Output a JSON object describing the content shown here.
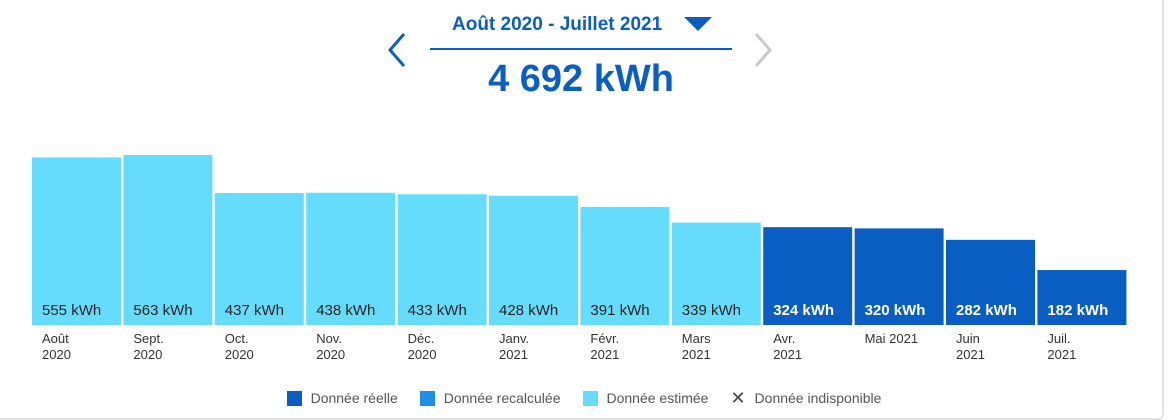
{
  "header": {
    "period_label": "Août 2020 - Juillet 2021",
    "total_label": "4 692 kWh",
    "prev_icon": "chevron-left-icon",
    "next_icon": "chevron-right-icon",
    "dropdown_icon": "caret-down-icon"
  },
  "chart_data": {
    "type": "bar",
    "unit": "kWh",
    "categories": [
      [
        "Août",
        "2020"
      ],
      [
        "Sept.",
        "2020"
      ],
      [
        "Oct.",
        "2020"
      ],
      [
        "Nov.",
        "2020"
      ],
      [
        "Déc.",
        "2020"
      ],
      [
        "Janv.",
        "2021"
      ],
      [
        "Févr.",
        "2021"
      ],
      [
        "Mars",
        "2021"
      ],
      [
        "Avr.",
        "2021"
      ],
      [
        "Mai 2021"
      ],
      [
        "Juin",
        "2021"
      ],
      [
        "Juil.",
        "2021"
      ]
    ],
    "values": [
      555,
      563,
      437,
      438,
      433,
      428,
      391,
      339,
      324,
      320,
      282,
      182
    ],
    "value_labels": [
      "555 kWh",
      "563 kWh",
      "437 kWh",
      "438 kWh",
      "433 kWh",
      "428 kWh",
      "391 kWh",
      "339 kWh",
      "324 kWh",
      "320 kWh",
      "282 kWh",
      "182 kWh"
    ],
    "status": [
      "estimee",
      "estimee",
      "estimee",
      "estimee",
      "estimee",
      "estimee",
      "estimee",
      "estimee",
      "reelle",
      "reelle",
      "reelle",
      "reelle"
    ],
    "colors": {
      "reelle": "#0a5ec2",
      "recalculee": "#1e8ee6",
      "estimee": "#66dcfc"
    },
    "label_colors": {
      "reelle": "#ffffff",
      "estimee": "#222222"
    },
    "grid": false,
    "legend_position": "bottom"
  },
  "legend": [
    {
      "key": "reelle",
      "label": "Donnée réelle",
      "color": "#0a5ec2"
    },
    {
      "key": "recalculee",
      "label": "Donnée recalculée",
      "color": "#1e8ee6"
    },
    {
      "key": "estimee",
      "label": "Donnée estimée",
      "color": "#66dcfc"
    },
    {
      "key": "indisponible",
      "label": "Donnée indisponible",
      "icon": "close-icon"
    }
  ]
}
